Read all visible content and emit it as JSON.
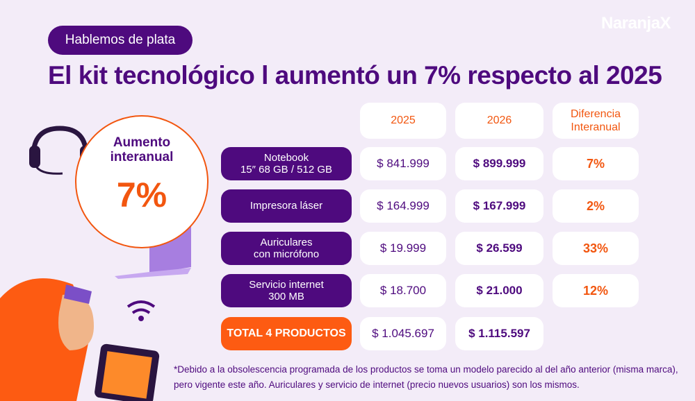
{
  "tag": "Hablemos de plata",
  "logo": "NaranjaX",
  "title": "El kit tecnológico l aumentó un 7% respecto al 2025",
  "badge": {
    "title_line1": "Aumento",
    "title_line2": "interanual",
    "value": "7%"
  },
  "table": {
    "headers": [
      "2025",
      "2026",
      "Diferencia Interanual"
    ],
    "rows": [
      {
        "line1": "Notebook",
        "line2": "15″ 68 GB / 512 GB",
        "p2025": "$ 841.999",
        "p2026": "$ 899.999",
        "diff": "7%"
      },
      {
        "line1": "Impresora láser",
        "line2": "",
        "p2025": "$ 164.999",
        "p2026": "$ 167.999",
        "diff": "2%"
      },
      {
        "line1": "Auriculares",
        "line2": "con micrófono",
        "p2025": "$ 19.999",
        "p2026": "$ 26.599",
        "diff": "33%"
      },
      {
        "line1": "Servicio internet",
        "line2": "300 MB",
        "p2025": "$ 18.700",
        "p2026": "$ 21.000",
        "diff": "12%"
      }
    ],
    "total": {
      "label": "TOTAL 4 PRODUCTOS",
      "p2025": "$ 1.045.697",
      "p2026": "$ 1.115.597"
    }
  },
  "footnote": "*Debido a la obsolescencia programada de los productos se toma un modelo parecido al del año anterior (misma marca), pero vigente este año. Auriculares y servicio de internet (precio nuevos usuarios) son los mismos.",
  "colors": {
    "purple": "#4e0a7e",
    "orange": "#f2560f",
    "bg": "#f3ecf8"
  }
}
